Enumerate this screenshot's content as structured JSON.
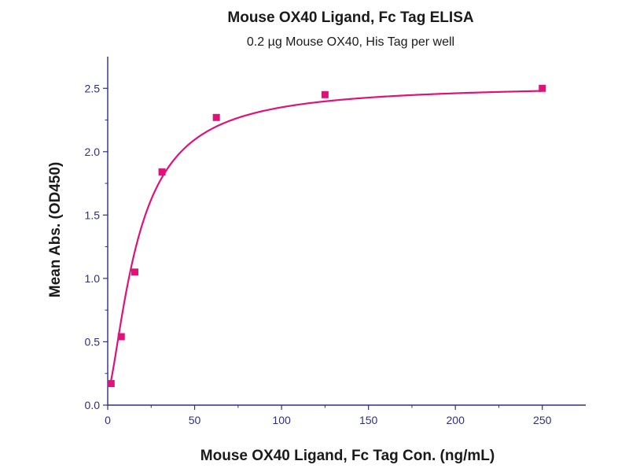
{
  "chart_data": {
    "type": "scatter",
    "title": "Mouse OX40 Ligand, Fc Tag ELISA",
    "subtitle": "0.2 µg Mouse OX40, His Tag per well",
    "xlabel": "Mouse OX40 Ligand, Fc Tag Con. (ng/mL)",
    "ylabel": "Mean Abs. (OD450)",
    "xlim": [
      0,
      275
    ],
    "ylim": [
      0,
      2.75
    ],
    "x_ticks": [
      "0",
      "50",
      "100",
      "150",
      "200",
      "250"
    ],
    "y_ticks": [
      "0.0",
      "0.5",
      "1.0",
      "1.5",
      "2.0",
      "2.5"
    ],
    "grid": false,
    "legend": "none",
    "series": [
      {
        "points": [
          {
            "x": 1.95,
            "y": 0.17
          },
          {
            "x": 7.8,
            "y": 0.54
          },
          {
            "x": 15.6,
            "y": 1.05
          },
          {
            "x": 31.25,
            "y": 1.84
          },
          {
            "x": 62.5,
            "y": 2.27
          },
          {
            "x": 125,
            "y": 2.45
          },
          {
            "x": 250,
            "y": 2.5
          }
        ],
        "fit": "4PL",
        "marker": "square"
      }
    ],
    "colors": {
      "series": "#e0127a",
      "axis": "#2e2e8a",
      "text": "#1a1a1a"
    }
  }
}
